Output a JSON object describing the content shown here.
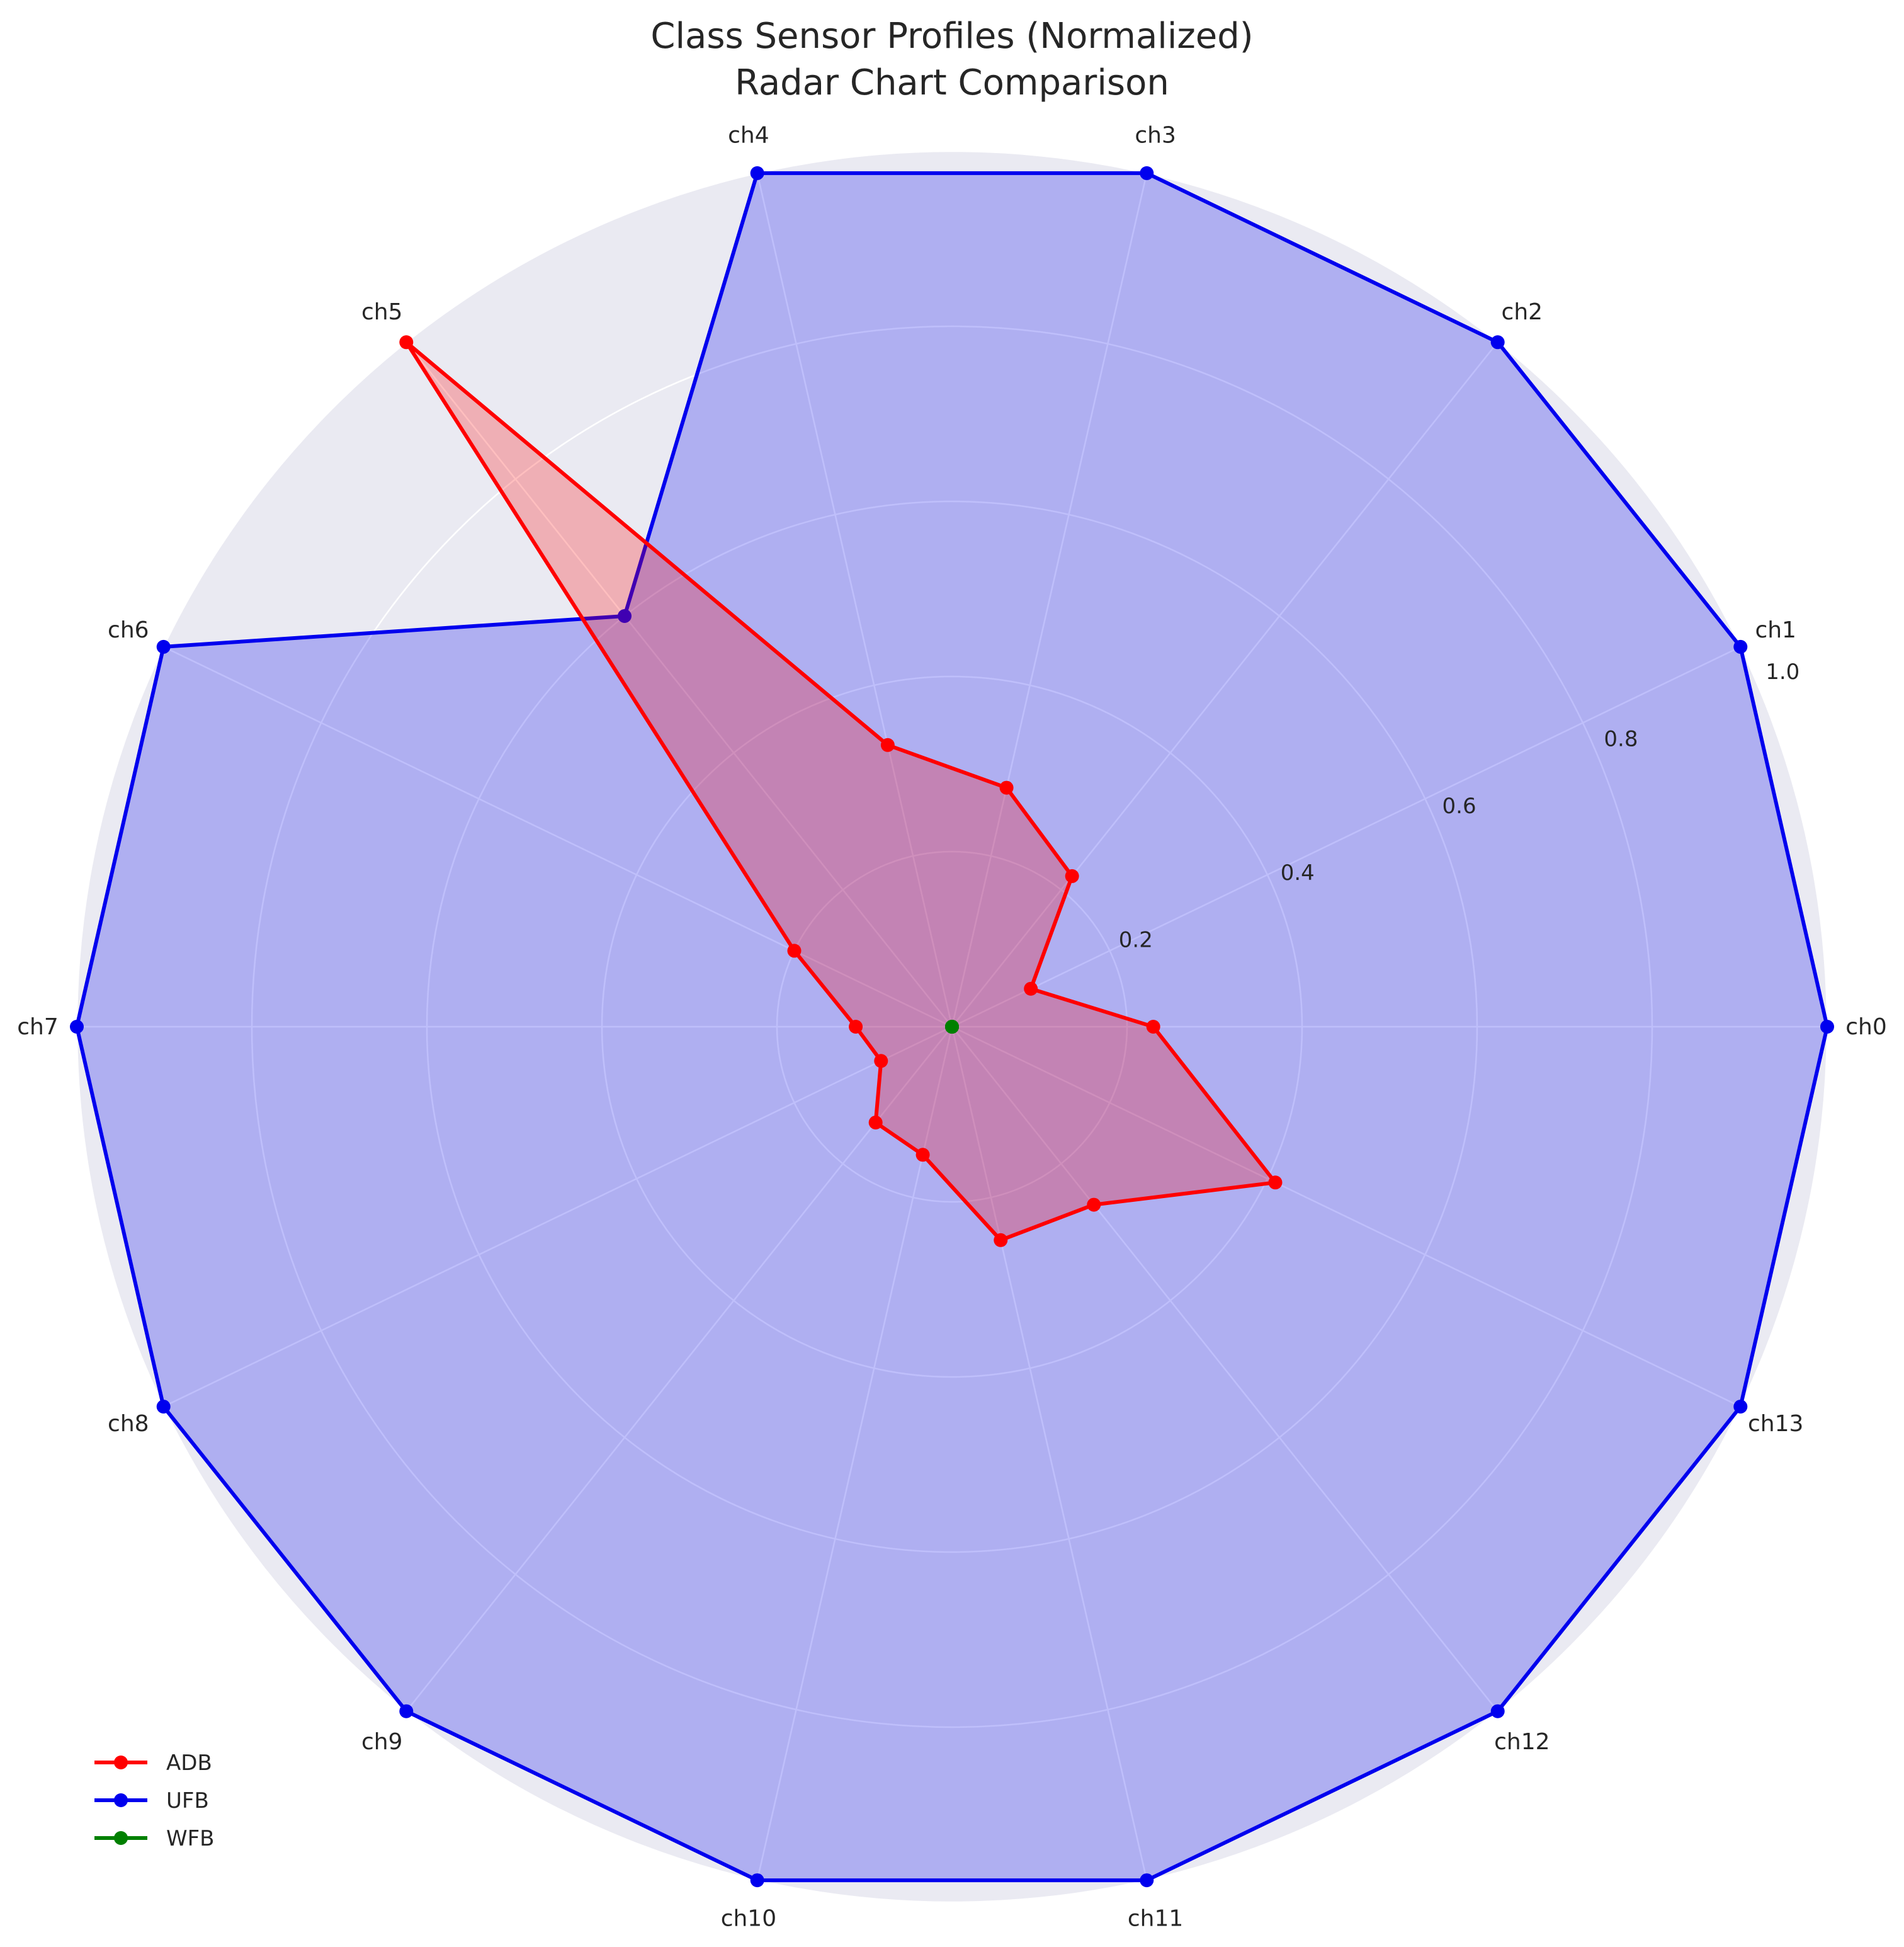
{
  "chart_data": {
    "type": "radar",
    "title": "Class Sensor Profiles (Normalized)",
    "subtitle": "Radar Chart Comparison",
    "axes": [
      "ch0",
      "ch1",
      "ch2",
      "ch3",
      "ch4",
      "ch5",
      "ch6",
      "ch7",
      "ch8",
      "ch9",
      "ch10",
      "ch11",
      "ch12",
      "ch13"
    ],
    "r_ticks": [
      "0.2",
      "0.4",
      "0.6",
      "0.8",
      "1.0"
    ],
    "r_tick_values": [
      0.2,
      0.4,
      0.6,
      0.8,
      1.0
    ],
    "rlim": [
      0,
      1.0
    ],
    "grid": true,
    "legend_position": "lower-left",
    "series": [
      {
        "name": "ADB",
        "color": "#ff0000",
        "values": [
          0.23,
          0.1,
          0.22,
          0.28,
          0.33,
          1.0,
          0.2,
          0.11,
          0.09,
          0.14,
          0.15,
          0.25,
          0.26,
          0.41
        ]
      },
      {
        "name": "UFB",
        "color": "#0000ee",
        "values": [
          1.0,
          1.0,
          1.0,
          1.0,
          1.0,
          0.6,
          1.0,
          1.0,
          1.0,
          1.0,
          1.0,
          1.0,
          1.0,
          1.0
        ]
      },
      {
        "name": "WFB",
        "color": "#008000",
        "values": [
          0,
          0,
          0,
          0,
          0,
          0,
          0,
          0,
          0,
          0,
          0,
          0,
          0,
          0
        ]
      }
    ]
  }
}
